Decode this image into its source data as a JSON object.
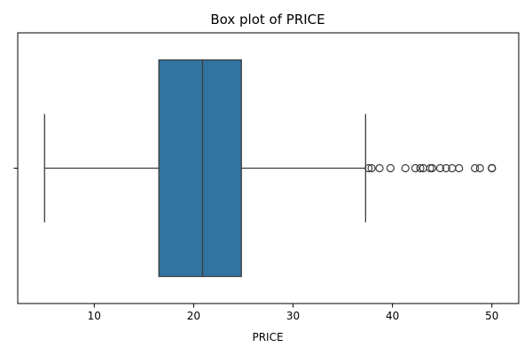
{
  "chart_data": {
    "type": "box",
    "orientation": "horizontal",
    "title": "Box plot of PRICE",
    "xlabel": "PRICE",
    "ylabel": "",
    "xlim": [
      2.3,
      52.7
    ],
    "xticks": [
      10,
      20,
      30,
      40,
      50
    ],
    "yticks": [
      ""
    ],
    "grid": false,
    "box": {
      "whisker_low": 5.0,
      "q1": 16.5,
      "median": 20.9,
      "q3": 24.8,
      "whisker_high": 37.3,
      "color": "#3274a1",
      "outliers": [
        37.6,
        37.9,
        38.7,
        39.8,
        41.3,
        42.3,
        42.8,
        43.1,
        43.8,
        44.0,
        44.8,
        45.4,
        46.0,
        46.7,
        48.3,
        48.8,
        50.0,
        50.0,
        50.0,
        50.0
      ]
    }
  }
}
